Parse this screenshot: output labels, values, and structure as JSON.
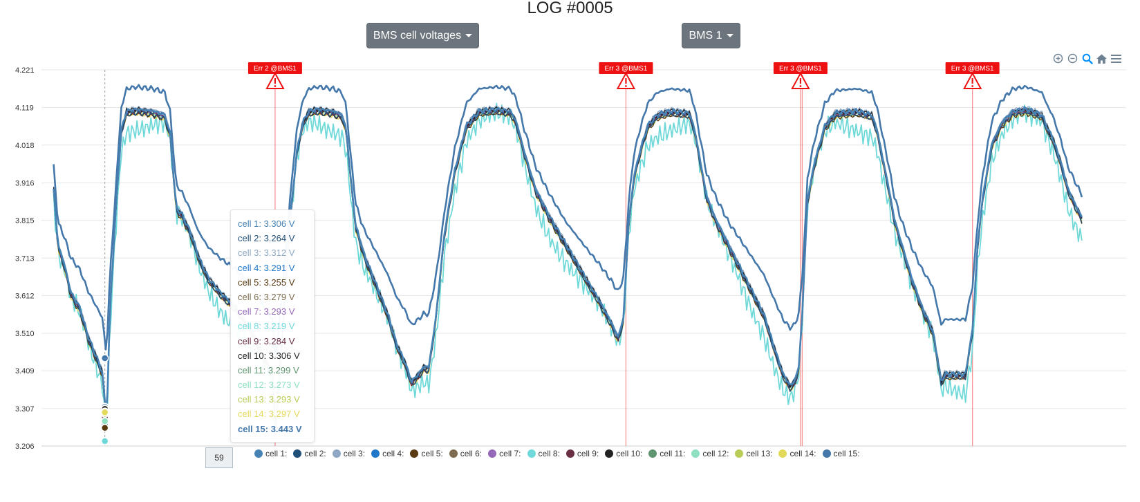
{
  "page": {
    "title": "LOG #0005"
  },
  "controls": {
    "metric_dropdown_label": "BMS cell voltages",
    "bms_dropdown_label": "BMS 1"
  },
  "toolbar": {
    "icons": [
      "zoom-in-icon",
      "zoom-out-icon",
      "zoom-selection-icon",
      "home-reset-icon",
      "menu-icon"
    ]
  },
  "tooltip": {
    "x_label": "59",
    "rows": [
      {
        "text": "cell 1: 3.306 V",
        "color": "#4682b4"
      },
      {
        "text": "cell 2: 3.264 V",
        "color": "#1f4e79"
      },
      {
        "text": "cell 3: 3.312 V",
        "color": "#8fa9c4"
      },
      {
        "text": "cell 4: 3.291 V",
        "color": "#1f77c9"
      },
      {
        "text": "cell 5: 3.255 V",
        "color": "#5a3a10"
      },
      {
        "text": "cell 6: 3.279 V",
        "color": "#7d6b4f"
      },
      {
        "text": "cell 7: 3.293 V",
        "color": "#9469b8"
      },
      {
        "text": "cell 8: 3.219 V",
        "color": "#6fd8d8"
      },
      {
        "text": "cell 9: 3.284 V",
        "color": "#6a2f45"
      },
      {
        "text": "cell 10: 3.306 V",
        "color": "#222222"
      },
      {
        "text": "cell 11: 3.299 V",
        "color": "#5f9470"
      },
      {
        "text": "cell 12: 3.273 V",
        "color": "#8fe0c0"
      },
      {
        "text": "cell 13: 3.293 V",
        "color": "#b9cc55"
      },
      {
        "text": "cell 14: 3.297 V",
        "color": "#e3d95c"
      },
      {
        "text": "cell 15: 3.443 V",
        "color": "#4477aa",
        "bold": true
      }
    ]
  },
  "chart_data": {
    "type": "line",
    "title": "",
    "xlabel": "",
    "ylabel": "",
    "ylim": [
      3.206,
      4.221
    ],
    "yticks": [
      "4.221",
      "4.119",
      "4.018",
      "3.916",
      "3.815",
      "3.713",
      "3.612",
      "3.510",
      "3.409",
      "3.307",
      "3.206"
    ],
    "x_range": [
      -14,
      1235
    ],
    "grid": true,
    "legend_placement": "bottom",
    "hover_x": 59,
    "error_markers": [
      {
        "label": "Err 2 @BMS1",
        "x": 255
      },
      {
        "label": "Err 3 @BMS1",
        "x": 659
      },
      {
        "label": "Err 3 @BMS1",
        "x": 860
      },
      {
        "label": "Err 3 @BMS1",
        "x": 1058
      }
    ],
    "extra_error_lines_x": [
      862
    ],
    "error_color": "#ee1111",
    "reference_series": {
      "name": "cell 10",
      "points": [
        [
          0,
          3.9
        ],
        [
          5,
          3.75
        ],
        [
          12,
          3.7
        ],
        [
          20,
          3.62
        ],
        [
          30,
          3.58
        ],
        [
          40,
          3.5
        ],
        [
          52,
          3.43
        ],
        [
          57,
          3.4
        ],
        [
          59,
          3.306
        ],
        [
          61,
          3.28
        ],
        [
          65,
          3.58
        ],
        [
          72,
          3.86
        ],
        [
          78,
          4.06
        ],
        [
          84,
          4.11
        ],
        [
          95,
          4.115
        ],
        [
          115,
          4.11
        ],
        [
          128,
          4.1
        ],
        [
          134,
          4.05
        ],
        [
          138,
          3.94
        ],
        [
          141,
          3.85
        ],
        [
          148,
          3.83
        ],
        [
          158,
          3.78
        ],
        [
          168,
          3.71
        ],
        [
          178,
          3.66
        ],
        [
          192,
          3.62
        ],
        [
          210,
          3.58
        ],
        [
          228,
          3.52
        ],
        [
          242,
          3.45
        ],
        [
          252,
          3.4
        ],
        [
          255,
          3.24
        ],
        [
          258,
          3.33
        ],
        [
          265,
          3.56
        ],
        [
          272,
          3.81
        ],
        [
          280,
          4.0
        ],
        [
          287,
          4.08
        ],
        [
          294,
          4.11
        ],
        [
          304,
          4.115
        ],
        [
          322,
          4.11
        ],
        [
          332,
          4.1
        ],
        [
          337,
          4.06
        ],
        [
          342,
          3.93
        ],
        [
          348,
          3.8
        ],
        [
          358,
          3.72
        ],
        [
          370,
          3.65
        ],
        [
          385,
          3.56
        ],
        [
          395,
          3.48
        ],
        [
          405,
          3.43
        ],
        [
          412,
          3.38
        ],
        [
          420,
          3.4
        ],
        [
          426,
          3.42
        ],
        [
          432,
          3.42
        ],
        [
          440,
          3.55
        ],
        [
          450,
          3.78
        ],
        [
          462,
          3.95
        ],
        [
          475,
          4.07
        ],
        [
          490,
          4.11
        ],
        [
          510,
          4.115
        ],
        [
          526,
          4.11
        ],
        [
          533,
          4.08
        ],
        [
          542,
          4.0
        ],
        [
          555,
          3.9
        ],
        [
          570,
          3.83
        ],
        [
          585,
          3.77
        ],
        [
          600,
          3.71
        ],
        [
          615,
          3.65
        ],
        [
          628,
          3.6
        ],
        [
          642,
          3.54
        ],
        [
          650,
          3.5
        ],
        [
          656,
          3.55
        ],
        [
          662,
          3.8
        ],
        [
          668,
          3.93
        ],
        [
          675,
          4.0
        ],
        [
          684,
          4.07
        ],
        [
          695,
          4.1
        ],
        [
          710,
          4.11
        ],
        [
          732,
          4.105
        ],
        [
          738,
          4.06
        ],
        [
          745,
          3.97
        ],
        [
          752,
          3.88
        ],
        [
          762,
          3.82
        ],
        [
          775,
          3.76
        ],
        [
          790,
          3.69
        ],
        [
          805,
          3.62
        ],
        [
          818,
          3.56
        ],
        [
          830,
          3.47
        ],
        [
          840,
          3.4
        ],
        [
          848,
          3.37
        ],
        [
          853,
          3.38
        ],
        [
          858,
          3.42
        ],
        [
          862,
          3.56
        ],
        [
          868,
          3.87
        ],
        [
          876,
          3.97
        ],
        [
          888,
          4.07
        ],
        [
          900,
          4.105
        ],
        [
          925,
          4.11
        ],
        [
          942,
          4.1
        ],
        [
          948,
          4.06
        ],
        [
          954,
          3.99
        ],
        [
          961,
          3.91
        ],
        [
          968,
          3.82
        ],
        [
          978,
          3.74
        ],
        [
          988,
          3.66
        ],
        [
          1000,
          3.58
        ],
        [
          1012,
          3.52
        ],
        [
          1018,
          3.44
        ],
        [
          1022,
          3.38
        ],
        [
          1026,
          3.4
        ],
        [
          1040,
          3.4
        ],
        [
          1050,
          3.4
        ],
        [
          1058,
          3.52
        ],
        [
          1064,
          3.75
        ],
        [
          1070,
          3.88
        ],
        [
          1080,
          4.02
        ],
        [
          1092,
          4.08
        ],
        [
          1105,
          4.11
        ],
        [
          1120,
          4.115
        ],
        [
          1138,
          4.1
        ],
        [
          1145,
          4.06
        ],
        [
          1150,
          4.04
        ],
        [
          1160,
          3.97
        ],
        [
          1168,
          3.9
        ],
        [
          1178,
          3.85
        ],
        [
          1185,
          3.82
        ]
      ]
    },
    "series": [
      {
        "name": "cell 1:",
        "color": "#4682b4",
        "offset": 0.0,
        "phase": 0
      },
      {
        "name": "cell 2:",
        "color": "#1f4e79",
        "offset": -0.01,
        "phase": 1.3
      },
      {
        "name": "cell 3:",
        "color": "#8fa9c4",
        "offset": 0.004,
        "phase": 2.1
      },
      {
        "name": "cell 4:",
        "color": "#1f77c9",
        "offset": -0.004,
        "phase": 3.0
      },
      {
        "name": "cell 5:",
        "color": "#5a3a10",
        "offset": -0.013,
        "phase": 0.7
      },
      {
        "name": "cell 6:",
        "color": "#7d6b4f",
        "offset": -0.007,
        "phase": 4.1
      },
      {
        "name": "cell 7:",
        "color": "#9469b8",
        "offset": -0.003,
        "phase": 5.0
      },
      {
        "name": "cell 8:",
        "color": "#6fd8d8",
        "offset": -0.035,
        "phase": 2.6,
        "noise": 0.07
      },
      {
        "name": "cell 9:",
        "color": "#6a2f45",
        "offset": -0.006,
        "phase": 3.6
      },
      {
        "name": "cell 10:",
        "color": "#222222",
        "offset": 0.0,
        "phase": 1.8
      },
      {
        "name": "cell 11:",
        "color": "#5f9470",
        "offset": -0.002,
        "phase": 0.3
      },
      {
        "name": "cell 12:",
        "color": "#8fe0c0",
        "offset": -0.008,
        "phase": 4.7
      },
      {
        "name": "cell 13:",
        "color": "#b9cc55",
        "offset": -0.004,
        "phase": 2.9
      },
      {
        "name": "cell 14:",
        "color": "#e3d95c",
        "offset": -0.012,
        "phase": 5.5
      },
      {
        "name": "cell 15:",
        "color": "#4477aa",
        "offset": 0.06,
        "phase": 1.0
      }
    ]
  }
}
